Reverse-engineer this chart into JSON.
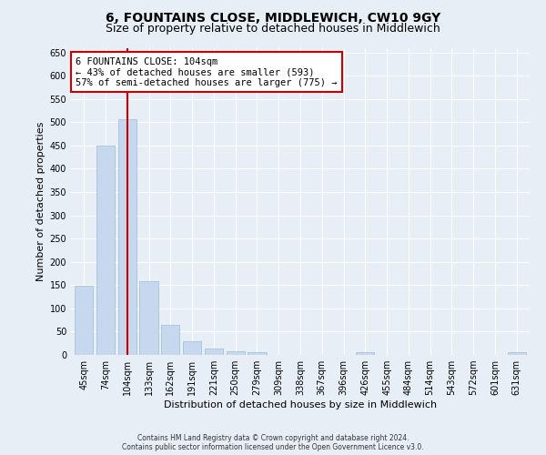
{
  "title": "6, FOUNTAINS CLOSE, MIDDLEWICH, CW10 9GY",
  "subtitle": "Size of property relative to detached houses in Middlewich",
  "xlabel": "Distribution of detached houses by size in Middlewich",
  "ylabel": "Number of detached properties",
  "footer_line1": "Contains HM Land Registry data © Crown copyright and database right 2024.",
  "footer_line2": "Contains public sector information licensed under the Open Government Licence v3.0.",
  "categories": [
    "45sqm",
    "74sqm",
    "104sqm",
    "133sqm",
    "162sqm",
    "191sqm",
    "221sqm",
    "250sqm",
    "279sqm",
    "309sqm",
    "338sqm",
    "367sqm",
    "396sqm",
    "426sqm",
    "455sqm",
    "484sqm",
    "514sqm",
    "543sqm",
    "572sqm",
    "601sqm",
    "631sqm"
  ],
  "values": [
    148,
    450,
    507,
    158,
    65,
    30,
    13,
    8,
    5,
    0,
    0,
    0,
    0,
    5,
    0,
    0,
    0,
    0,
    0,
    0,
    5
  ],
  "bar_color": "#c5d8ed",
  "bar_edge_color": "#a8c4de",
  "vline_index": 2,
  "vline_color": "#cc0000",
  "annotation_line1": "6 FOUNTAINS CLOSE: 104sqm",
  "annotation_line2": "← 43% of detached houses are smaller (593)",
  "annotation_line3": "57% of semi-detached houses are larger (775) →",
  "annotation_box_color": "#ffffff",
  "annotation_box_edge": "#cc0000",
  "ylim": [
    0,
    660
  ],
  "yticks": [
    0,
    50,
    100,
    150,
    200,
    250,
    300,
    350,
    400,
    450,
    500,
    550,
    600,
    650
  ],
  "bg_color": "#e8eef6",
  "plot_bg_color": "#e8eef6",
  "grid_color": "#ffffff",
  "title_fontsize": 10,
  "subtitle_fontsize": 9,
  "axis_label_fontsize": 8,
  "tick_fontsize": 7,
  "annot_fontsize": 7.5
}
